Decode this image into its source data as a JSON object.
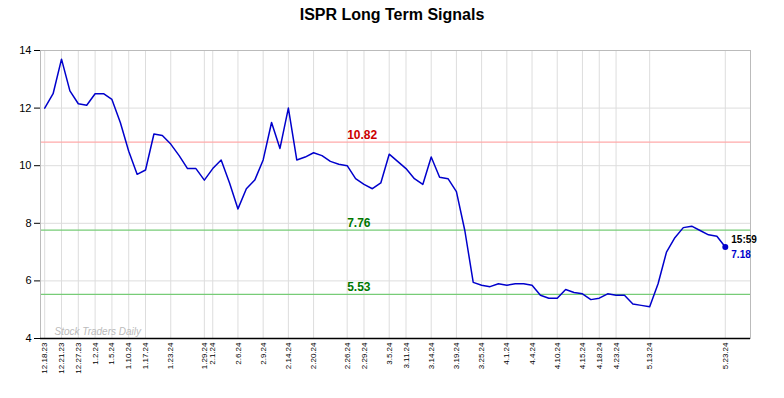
{
  "chart_data": {
    "type": "line",
    "title": "ISPR Long Term Signals",
    "x": [
      0,
      1,
      2,
      3,
      4,
      5,
      6,
      7,
      8,
      9,
      10,
      11,
      12,
      13,
      14,
      15,
      16,
      17,
      18,
      19,
      20,
      21,
      22,
      23,
      24,
      25,
      26,
      27,
      28,
      29,
      30,
      31,
      32,
      33,
      34,
      35,
      36,
      37,
      38,
      39,
      40,
      41,
      42,
      43,
      44,
      45,
      46,
      47,
      48,
      49,
      50,
      51,
      52,
      53,
      54,
      55,
      56,
      57,
      58,
      59,
      60,
      61,
      62,
      63,
      64,
      65,
      66,
      67,
      68,
      69,
      70,
      71,
      72,
      73,
      74,
      75,
      76,
      77,
      78,
      79,
      80,
      81
    ],
    "values": [
      12.0,
      12.5,
      13.7,
      12.6,
      12.15,
      12.1,
      12.5,
      12.5,
      12.3,
      11.5,
      10.5,
      9.7,
      9.85,
      11.1,
      11.05,
      10.75,
      10.35,
      9.9,
      9.9,
      9.5,
      9.9,
      10.2,
      9.4,
      8.5,
      9.2,
      9.5,
      10.2,
      11.5,
      10.6,
      12.0,
      10.2,
      10.3,
      10.45,
      10.35,
      10.15,
      10.05,
      10.0,
      9.55,
      9.35,
      9.2,
      9.4,
      10.4,
      10.15,
      9.9,
      9.55,
      9.35,
      10.3,
      9.6,
      9.55,
      9.1,
      7.75,
      5.95,
      5.85,
      5.8,
      5.9,
      5.85,
      5.9,
      5.9,
      5.85,
      5.5,
      5.4,
      5.4,
      5.7,
      5.6,
      5.55,
      5.35,
      5.4,
      5.55,
      5.5,
      5.5,
      5.2,
      5.15,
      5.1,
      5.9,
      7.0,
      7.5,
      7.85,
      7.9,
      7.75,
      7.6,
      7.55,
      7.18
    ],
    "color": "#0000cc",
    "xlim": [
      -0.5,
      84
    ],
    "xticks": [
      {
        "value": 0,
        "label": "12.18.23"
      },
      {
        "value": 2,
        "label": "12.21.23"
      },
      {
        "value": 4,
        "label": "12.27.23"
      },
      {
        "value": 6,
        "label": "1.2.24"
      },
      {
        "value": 8,
        "label": "1.5.24"
      },
      {
        "value": 10,
        "label": "1.10.24"
      },
      {
        "value": 12,
        "label": "1.17.24"
      },
      {
        "value": 15,
        "label": "1.23.24"
      },
      {
        "value": 19,
        "label": "1.29.24"
      },
      {
        "value": 20,
        "label": "2.1.24"
      },
      {
        "value": 23,
        "label": "2.6.24"
      },
      {
        "value": 26,
        "label": "2.9.24"
      },
      {
        "value": 29,
        "label": "2.14.24"
      },
      {
        "value": 32,
        "label": "2.20.24"
      },
      {
        "value": 36,
        "label": "2.26.24"
      },
      {
        "value": 38,
        "label": "2.29.24"
      },
      {
        "value": 41,
        "label": "3.5.24"
      },
      {
        "value": 43,
        "label": "3.11.24"
      },
      {
        "value": 46,
        "label": "3.14.24"
      },
      {
        "value": 49,
        "label": "3.19.24"
      },
      {
        "value": 52,
        "label": "3.25.24"
      },
      {
        "value": 55,
        "label": "4.1.24"
      },
      {
        "value": 58,
        "label": "4.4.24"
      },
      {
        "value": 61,
        "label": "4.10.24"
      },
      {
        "value": 64,
        "label": "4.15.24"
      },
      {
        "value": 66,
        "label": "4.18.24"
      },
      {
        "value": 68,
        "label": "4.23.24"
      },
      {
        "value": 72,
        "label": "5.13.24"
      },
      {
        "value": 81,
        "label": "5.23.24"
      }
    ],
    "ylim": [
      4,
      14
    ],
    "yticks": [
      4,
      6,
      8,
      10,
      12,
      14
    ],
    "grid": true,
    "reference_lines": [
      {
        "value": 10.82,
        "label": "10.82",
        "color": "#ffaaaa",
        "text_color": "#cc0000",
        "label_x": 36
      },
      {
        "value": 7.76,
        "label": "7.76",
        "color": "#77cc77",
        "text_color": "#007700",
        "label_x": 36
      },
      {
        "value": 5.53,
        "label": "5.53",
        "color": "#77cc77",
        "text_color": "#007700",
        "label_x": 36
      }
    ],
    "end_annotations": [
      {
        "text": "15:59",
        "color": "#000000"
      },
      {
        "text": "7.18",
        "color": "#0000cc"
      }
    ],
    "watermark": {
      "text": "Stock Traders Daily",
      "color": "#bbbbbb"
    }
  }
}
